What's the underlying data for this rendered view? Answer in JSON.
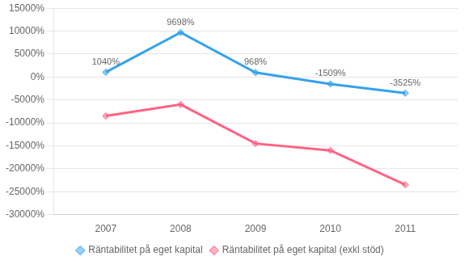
{
  "chart_data": {
    "type": "line",
    "x": [
      2007,
      2008,
      2009,
      2010,
      2011
    ],
    "series": [
      {
        "name": "Räntabilitet på eget kapital",
        "values": [
          1040,
          9698,
          968,
          -1509,
          -3525
        ],
        "value_labels": [
          "1040%",
          "9698%",
          "968%",
          "-1509%",
          "-3525%"
        ]
      },
      {
        "name": "Räntabilitet på eget kapital (exkl stöd)",
        "values": [
          -8500,
          -6000,
          -14500,
          -16000,
          -23500
        ]
      }
    ],
    "marker": "diamond",
    "data_labels": true,
    "xlim": [
      2006.3,
      2011.7
    ],
    "xticks": [
      2007,
      2008,
      2009,
      2010,
      2011
    ],
    "ylim": [
      -30000,
      15000
    ],
    "yticks": [
      {
        "value": -30000,
        "label": "-30000%"
      },
      {
        "value": -25000,
        "label": "-25000%"
      },
      {
        "value": -20000,
        "label": "-20000%"
      },
      {
        "value": -15000,
        "label": "-15000%"
      },
      {
        "value": -10000,
        "label": "-10000%"
      },
      {
        "value": -5000,
        "label": "-5000%"
      },
      {
        "value": 0,
        "label": "0%"
      },
      {
        "value": 5000,
        "label": "5000%"
      },
      {
        "value": 10000,
        "label": "10000%"
      },
      {
        "value": 15000,
        "label": "15000%"
      }
    ],
    "grid": "y",
    "legend": "bottom"
  }
}
